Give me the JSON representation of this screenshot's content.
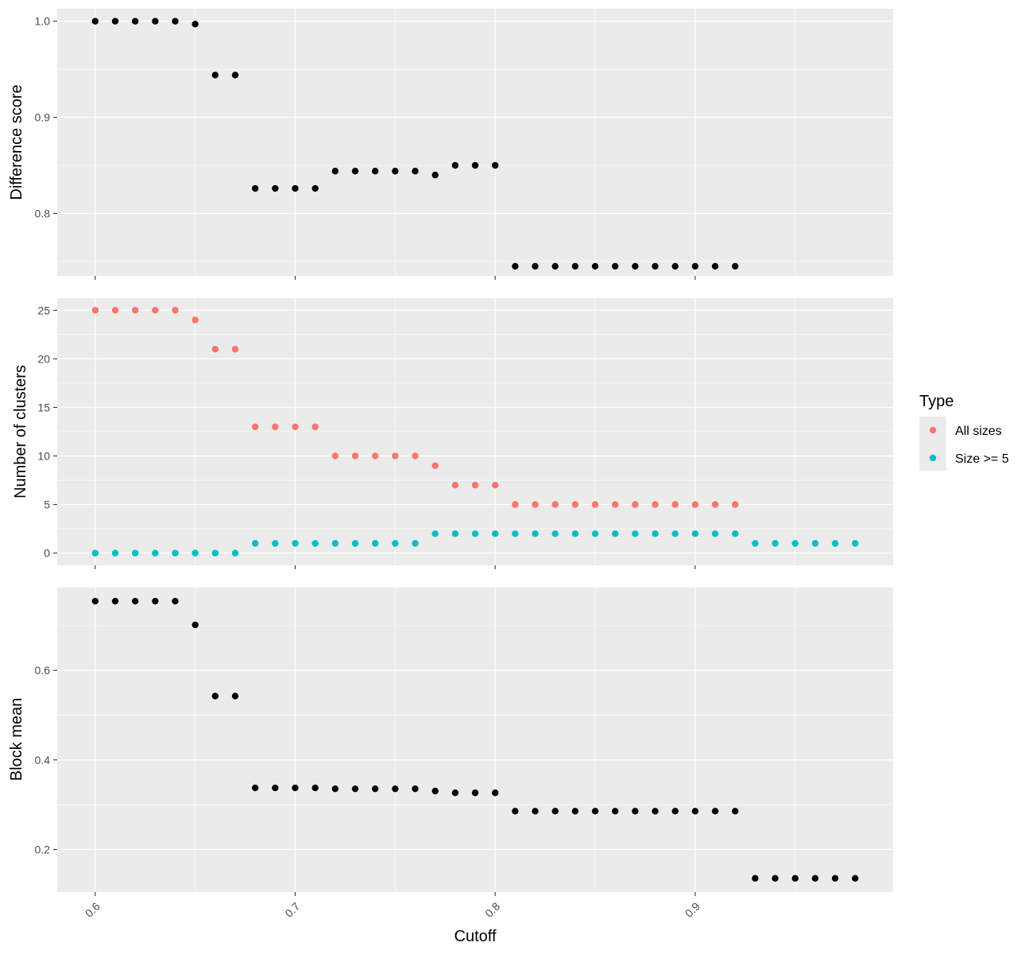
{
  "chart_data": [
    {
      "type": "scatter",
      "ylabel": "Difference score",
      "xlim": [
        0.581,
        0.999
      ],
      "ylim": [
        0.735,
        1.013
      ],
      "yticks": [
        0.8,
        0.9,
        1.0
      ],
      "ytick_labels": [
        "0.8",
        "0.9",
        "1.0"
      ],
      "color": "#000000",
      "series": [
        {
          "x": [
            0.6,
            0.61,
            0.62,
            0.63,
            0.64,
            0.65,
            0.66,
            0.67,
            0.68,
            0.69,
            0.7,
            0.71,
            0.72,
            0.73,
            0.74,
            0.75,
            0.76,
            0.77,
            0.78,
            0.79,
            0.8,
            0.81,
            0.82,
            0.83,
            0.84,
            0.85,
            0.86,
            0.87,
            0.88,
            0.89,
            0.9,
            0.91,
            0.92
          ],
          "y": [
            1.0,
            1.0,
            1.0,
            1.0,
            1.0,
            0.997,
            0.944,
            0.944,
            0.826,
            0.826,
            0.826,
            0.826,
            0.844,
            0.844,
            0.844,
            0.844,
            0.844,
            0.84,
            0.85,
            0.85,
            0.85,
            0.745,
            0.745,
            0.745,
            0.745,
            0.745,
            0.745,
            0.745,
            0.745,
            0.745,
            0.745,
            0.745,
            0.745
          ]
        }
      ]
    },
    {
      "type": "scatter",
      "ylabel": "Number of clusters",
      "xlim": [
        0.581,
        0.999
      ],
      "ylim": [
        -1.25,
        26.25
      ],
      "yticks": [
        0,
        5,
        10,
        15,
        20,
        25
      ],
      "ytick_labels": [
        "0",
        "5",
        "10",
        "15",
        "20",
        "25"
      ],
      "legend": {
        "title": "Type",
        "position": "right"
      },
      "series": [
        {
          "name": "All sizes",
          "color": "#F8766D",
          "x": [
            0.6,
            0.61,
            0.62,
            0.63,
            0.64,
            0.65,
            0.66,
            0.67,
            0.68,
            0.69,
            0.7,
            0.71,
            0.72,
            0.73,
            0.74,
            0.75,
            0.76,
            0.77,
            0.78,
            0.79,
            0.8,
            0.81,
            0.82,
            0.83,
            0.84,
            0.85,
            0.86,
            0.87,
            0.88,
            0.89,
            0.9,
            0.91,
            0.92
          ],
          "y": [
            25,
            25,
            25,
            25,
            25,
            24,
            21,
            21,
            13,
            13,
            13,
            13,
            10,
            10,
            10,
            10,
            10,
            9,
            7,
            7,
            7,
            5,
            5,
            5,
            5,
            5,
            5,
            5,
            5,
            5,
            5,
            5,
            5
          ]
        },
        {
          "name": "Size >= 5",
          "color": "#00BFC4",
          "x": [
            0.6,
            0.61,
            0.62,
            0.63,
            0.64,
            0.65,
            0.66,
            0.67,
            0.68,
            0.69,
            0.7,
            0.71,
            0.72,
            0.73,
            0.74,
            0.75,
            0.76,
            0.77,
            0.78,
            0.79,
            0.8,
            0.81,
            0.82,
            0.83,
            0.84,
            0.85,
            0.86,
            0.87,
            0.88,
            0.89,
            0.9,
            0.91,
            0.92,
            0.93,
            0.94,
            0.95,
            0.96,
            0.97,
            0.98
          ],
          "y": [
            0,
            0,
            0,
            0,
            0,
            0,
            0,
            0,
            1,
            1,
            1,
            1,
            1,
            1,
            1,
            1,
            1,
            2,
            2,
            2,
            2,
            2,
            2,
            2,
            2,
            2,
            2,
            2,
            2,
            2,
            2,
            2,
            2,
            1,
            1,
            1,
            1,
            1,
            1
          ]
        }
      ]
    },
    {
      "type": "scatter",
      "ylabel": "Block mean",
      "xlabel": "Cutoff",
      "xlim": [
        0.581,
        0.999
      ],
      "xticks": [
        0.6,
        0.7,
        0.8,
        0.9
      ],
      "xtick_labels": [
        "0.6",
        "0.7",
        "0.8",
        "0.9"
      ],
      "ylim": [
        0.105,
        0.785
      ],
      "yticks": [
        0.2,
        0.4,
        0.6
      ],
      "ytick_labels": [
        "0.2",
        "0.4",
        "0.6"
      ],
      "color": "#000000",
      "series": [
        {
          "x": [
            0.6,
            0.61,
            0.62,
            0.63,
            0.64,
            0.65,
            0.66,
            0.67,
            0.68,
            0.69,
            0.7,
            0.71,
            0.72,
            0.73,
            0.74,
            0.75,
            0.76,
            0.77,
            0.78,
            0.79,
            0.8,
            0.81,
            0.82,
            0.83,
            0.84,
            0.85,
            0.86,
            0.87,
            0.88,
            0.89,
            0.9,
            0.91,
            0.92,
            0.93,
            0.94,
            0.95,
            0.96,
            0.97,
            0.98
          ],
          "y": [
            0.7545,
            0.7545,
            0.7545,
            0.7545,
            0.7545,
            0.7015,
            0.5425,
            0.5425,
            0.3375,
            0.3375,
            0.3375,
            0.3375,
            0.3355,
            0.3355,
            0.3355,
            0.3355,
            0.3355,
            0.3305,
            0.3265,
            0.3265,
            0.3265,
            0.2855,
            0.2855,
            0.2855,
            0.2855,
            0.2855,
            0.2855,
            0.2855,
            0.2855,
            0.2855,
            0.2855,
            0.2855,
            0.2855,
            0.1355,
            0.1355,
            0.1355,
            0.1355,
            0.1355,
            0.1355
          ]
        }
      ]
    }
  ],
  "colors": {
    "panel_background": "#EBEBEB",
    "grid": "#FFFFFF",
    "tick_text": "#4D4D4D",
    "tick_mark": "#333333"
  }
}
